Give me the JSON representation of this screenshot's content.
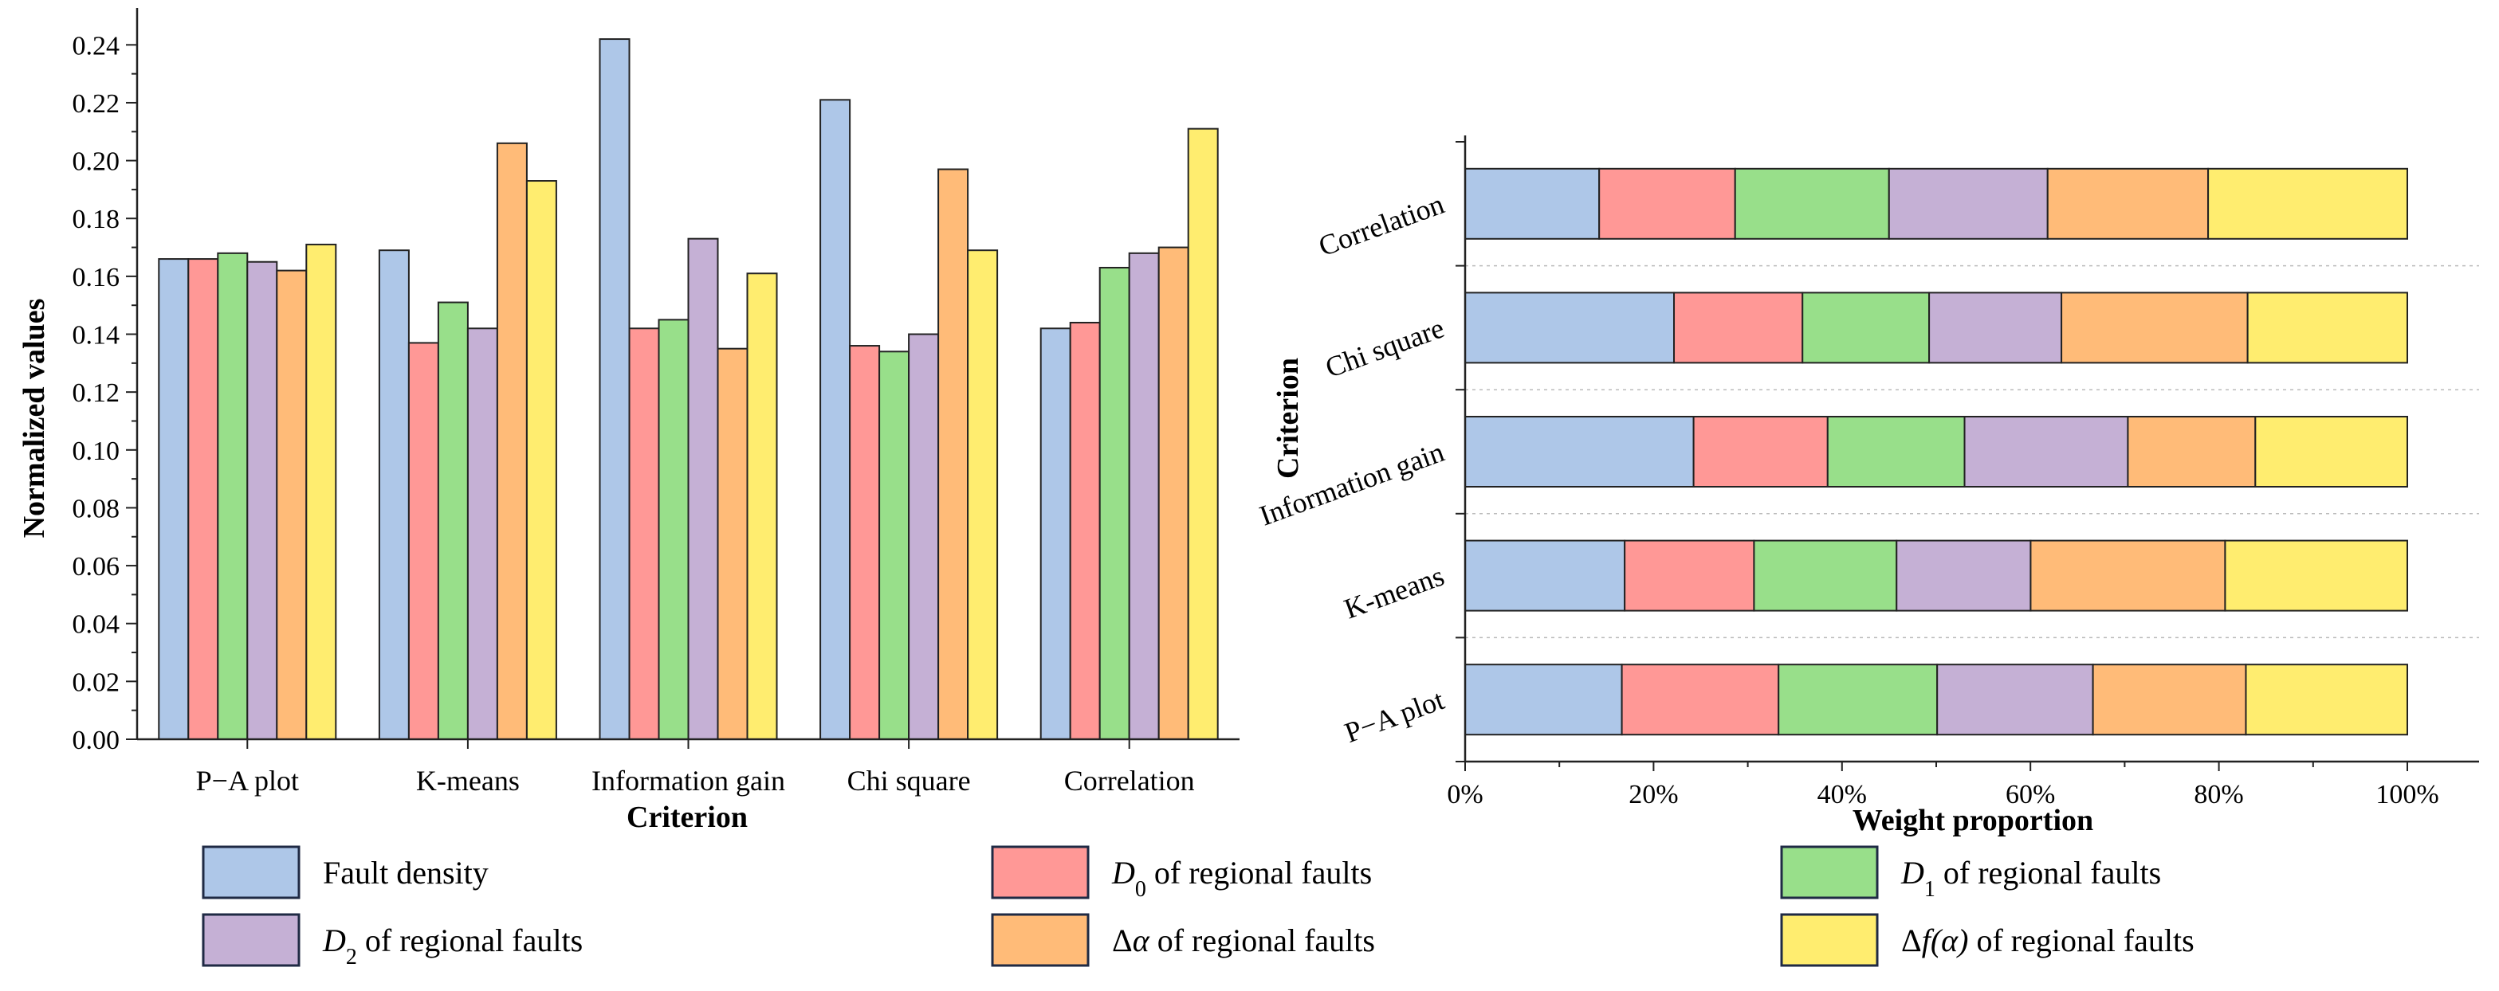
{
  "colors": {
    "Fault density": "#aec7e8",
    "D0 of regional faults": "#ff9896",
    "D1 of regional faults": "#98df8a",
    "D2 of regional faults": "#c5b0d5",
    "Δα of regional faults": "#ffbb78",
    "Δf(α) of regional faults": "#ffed6f",
    "stroke": "#222222",
    "grid": "#bbbbbb"
  },
  "legend": [
    {
      "key": "Fault density",
      "parts": [
        {
          "t": "Fault density",
          "it": false
        }
      ]
    },
    {
      "key": "D0 of regional faults",
      "parts": [
        {
          "t": "D",
          "it": true
        },
        {
          "t": "0",
          "sub": true
        },
        {
          "t": " of regional faults",
          "it": false
        }
      ]
    },
    {
      "key": "D1 of regional faults",
      "parts": [
        {
          "t": "D",
          "it": true
        },
        {
          "t": "1",
          "sub": true
        },
        {
          "t": " of regional faults",
          "it": false
        }
      ]
    },
    {
      "key": "D2 of regional faults",
      "parts": [
        {
          "t": "D",
          "it": true
        },
        {
          "t": "2",
          "sub": true
        },
        {
          "t": " of regional faults",
          "it": false
        }
      ]
    },
    {
      "key": "Δα of regional faults",
      "parts": [
        {
          "t": "Δ",
          "it": false
        },
        {
          "t": "α",
          "it": true
        },
        {
          "t": " of regional faults",
          "it": false
        }
      ]
    },
    {
      "key": "Δf(α) of regional faults",
      "parts": [
        {
          "t": "Δ",
          "it": false
        },
        {
          "t": "f(α)",
          "it": true
        },
        {
          "t": " of regional faults",
          "it": false
        }
      ]
    }
  ],
  "chart_data": [
    {
      "type": "bar",
      "title": "",
      "xlabel": "Criterion",
      "ylabel": "Normalized values",
      "ylim": [
        0,
        0.25
      ],
      "yticks": [
        "0.00",
        "0.02",
        "0.04",
        "0.06",
        "0.08",
        "0.10",
        "0.12",
        "0.14",
        "0.16",
        "0.18",
        "0.20",
        "0.22",
        "0.24"
      ],
      "categories": [
        "P−A plot",
        "K-means",
        "Information gain",
        "Chi square",
        "Correlation"
      ],
      "series": [
        {
          "name": "Fault density",
          "values": [
            0.166,
            0.169,
            0.242,
            0.221,
            0.142
          ]
        },
        {
          "name": "D0 of regional faults",
          "values": [
            0.166,
            0.137,
            0.142,
            0.136,
            0.144
          ]
        },
        {
          "name": "D1 of regional faults",
          "values": [
            0.168,
            0.151,
            0.145,
            0.134,
            0.163
          ]
        },
        {
          "name": "D2 of regional faults",
          "values": [
            0.165,
            0.142,
            0.173,
            0.14,
            0.168
          ]
        },
        {
          "name": "Δα of regional faults",
          "values": [
            0.162,
            0.206,
            0.135,
            0.197,
            0.17
          ]
        },
        {
          "name": "Δf(α) of regional faults",
          "values": [
            0.171,
            0.193,
            0.161,
            0.169,
            0.211
          ]
        }
      ]
    },
    {
      "type": "bar",
      "orientation": "horizontal",
      "stacked": true,
      "title": "",
      "xlabel": "Weight proportion",
      "ylabel": "Criterion",
      "xlim": [
        0,
        100
      ],
      "xticks": [
        "0%",
        "20%",
        "40%",
        "60%",
        "80%",
        "100%"
      ],
      "categories": [
        "P−A plot",
        "K-means",
        "Information gain",
        "Chi square",
        "Correlation"
      ],
      "series": [
        {
          "name": "Fault density",
          "values": [
            16.6,
            16.9,
            24.2,
            22.1,
            14.2
          ]
        },
        {
          "name": "D0 of regional faults",
          "values": [
            16.6,
            13.7,
            14.2,
            13.6,
            14.4
          ]
        },
        {
          "name": "D1 of regional faults",
          "values": [
            16.8,
            15.1,
            14.5,
            13.4,
            16.3
          ]
        },
        {
          "name": "D2 of regional faults",
          "values": [
            16.5,
            14.2,
            17.3,
            14.0,
            16.8
          ]
        },
        {
          "name": "Δα of regional faults",
          "values": [
            16.2,
            20.6,
            13.5,
            19.7,
            17.0
          ]
        },
        {
          "name": "Δf(α) of regional faults",
          "values": [
            17.1,
            19.3,
            16.1,
            16.9,
            21.1
          ]
        }
      ]
    }
  ]
}
